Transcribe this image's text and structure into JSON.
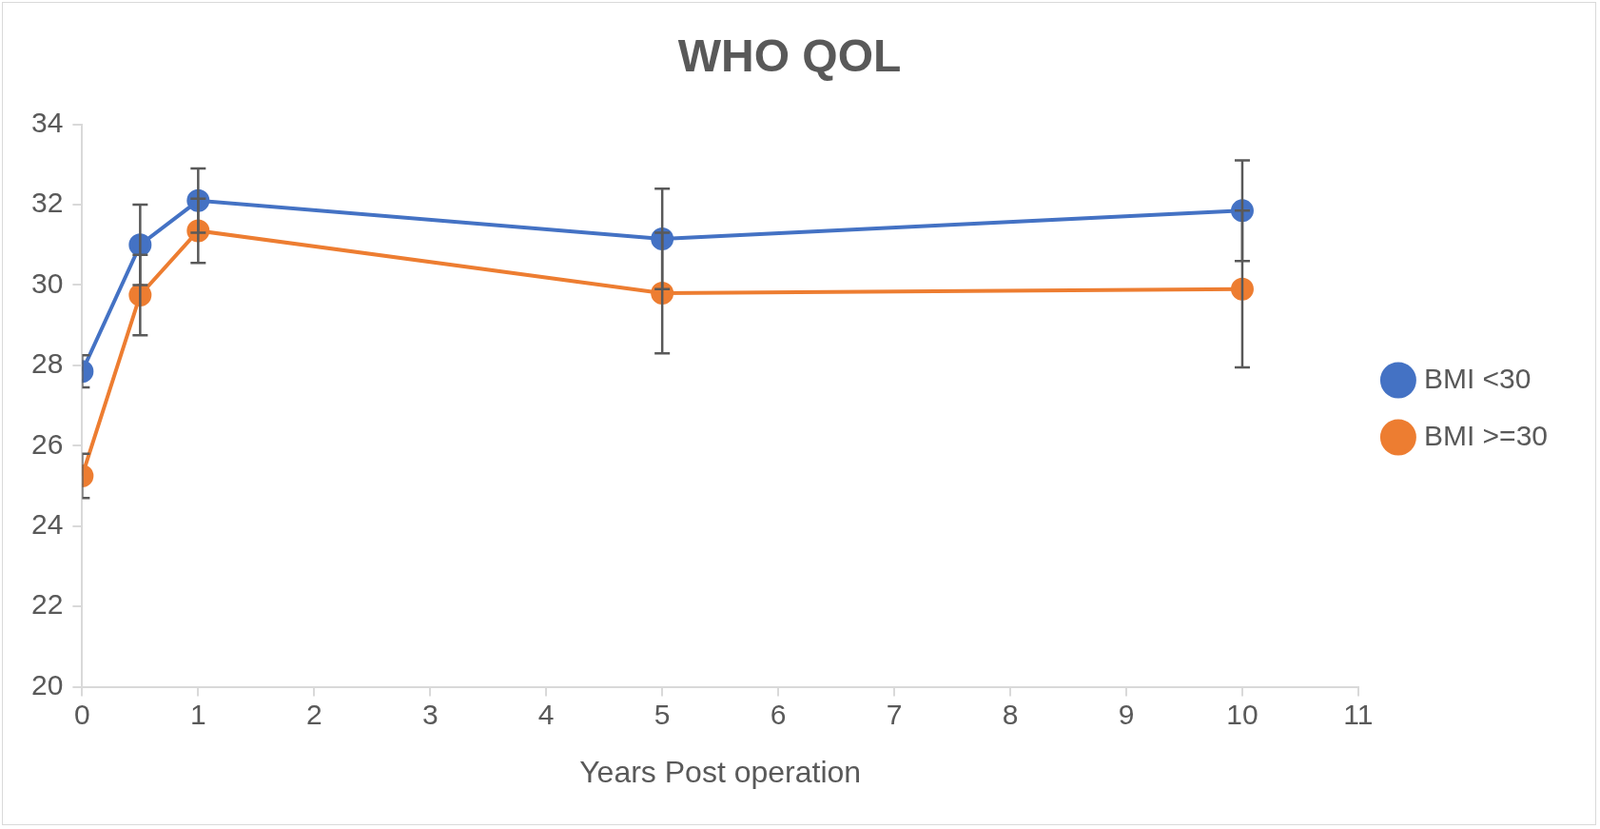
{
  "chart_data": {
    "type": "line",
    "title": "WHO QOL",
    "x_label": "Years Post operation",
    "x": [
      0,
      0.5,
      1,
      5,
      10
    ],
    "series": [
      {
        "name": "BMI <30",
        "color": "#4472c4",
        "marker": "circle",
        "line_style": "solid",
        "values": [
          27.85,
          31.0,
          32.1,
          31.15,
          31.85
        ],
        "errors": [
          0.4,
          1.0,
          0.8,
          1.25,
          1.25
        ]
      },
      {
        "name": "BMI >=30",
        "color": "#ed7d31",
        "marker": "circle",
        "line_style": "solid",
        "values": [
          25.25,
          29.75,
          31.35,
          29.8,
          29.9
        ],
        "errors": [
          0.55,
          1.0,
          0.8,
          1.5,
          1.95
        ]
      }
    ],
    "xlim": [
      0,
      11
    ],
    "xticks": [
      0,
      1,
      2,
      3,
      4,
      5,
      6,
      7,
      8,
      9,
      10,
      11
    ],
    "ylim": [
      20,
      34
    ],
    "yticks": [
      20,
      22,
      24,
      26,
      28,
      30,
      32,
      34
    ],
    "grid": false,
    "legend": "right"
  }
}
